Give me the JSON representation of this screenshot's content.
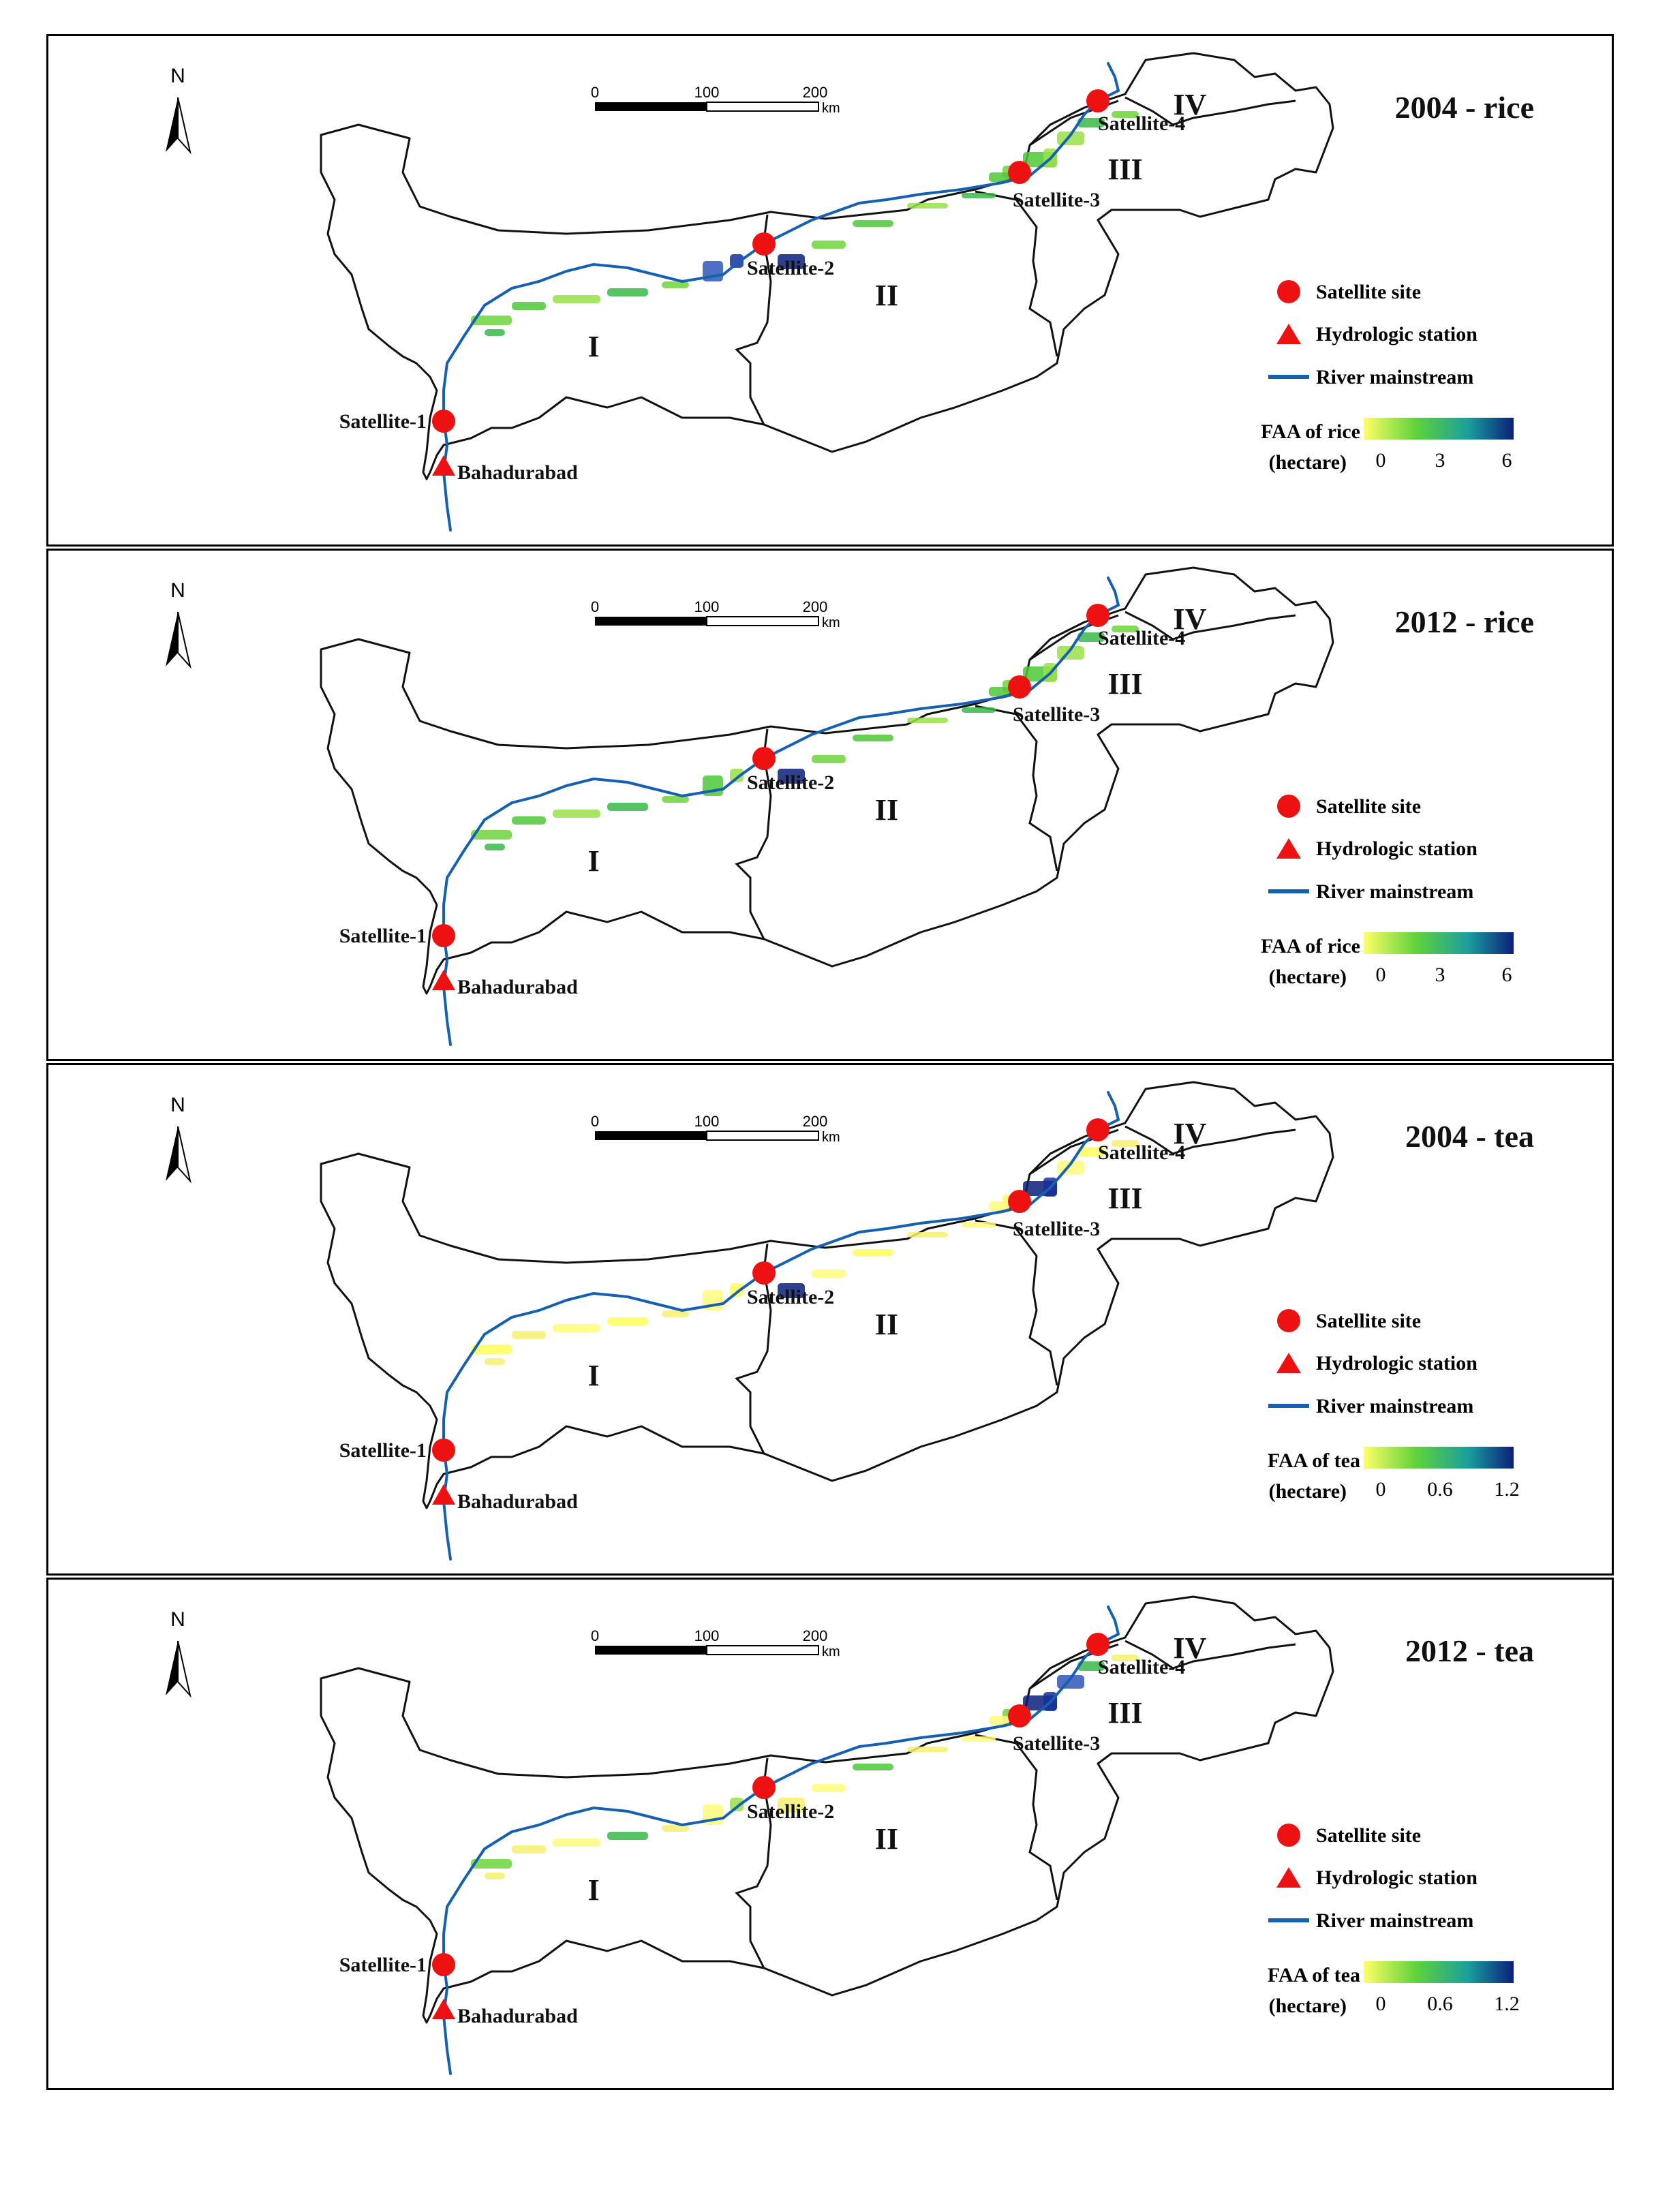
{
  "panels": [
    {
      "title": "2004 - rice",
      "legend_title_line1": "FAA of rice",
      "legend_title_line2": "(hectare)",
      "legend_ticks": [
        "0",
        "3",
        "6"
      ],
      "overlay_style": "rice-green"
    },
    {
      "title": "2012 - rice",
      "legend_title_line1": "FAA of rice",
      "legend_title_line2": "(hectare)",
      "legend_ticks": [
        "0",
        "3",
        "6"
      ],
      "overlay_style": "rice-green-dense"
    },
    {
      "title": "2004 - tea",
      "legend_title_line1": "FAA of tea",
      "legend_title_line2": "(hectare)",
      "legend_ticks": [
        "0",
        "0.6",
        "1.2"
      ],
      "overlay_style": "tea-yellow"
    },
    {
      "title": "2012 - tea",
      "legend_title_line1": "FAA of tea",
      "legend_title_line2": "(hectare)",
      "legend_ticks": [
        "0",
        "0.6",
        "1.2"
      ],
      "overlay_style": "tea-yellow-blue"
    }
  ],
  "common": {
    "north_label": "N",
    "scale_ticks": [
      "0",
      "100",
      "200"
    ],
    "scale_unit": "km",
    "zones": [
      "I",
      "II",
      "III",
      "IV"
    ],
    "sites": [
      "Satellite-1",
      "Satellite-2",
      "Satellite-3",
      "Satellite-4"
    ],
    "station": "Bahadurabad",
    "legend": {
      "satellite_site": "Satellite site",
      "hydrologic_station": "Hydrologic station",
      "river_mainstream": "River mainstream"
    },
    "colors": {
      "site": "#ee1111",
      "river": "#1560b0",
      "ramp": [
        "#ffff66",
        "#5fd23a",
        "#1a9e9e",
        "#0b1f7a"
      ]
    }
  }
}
